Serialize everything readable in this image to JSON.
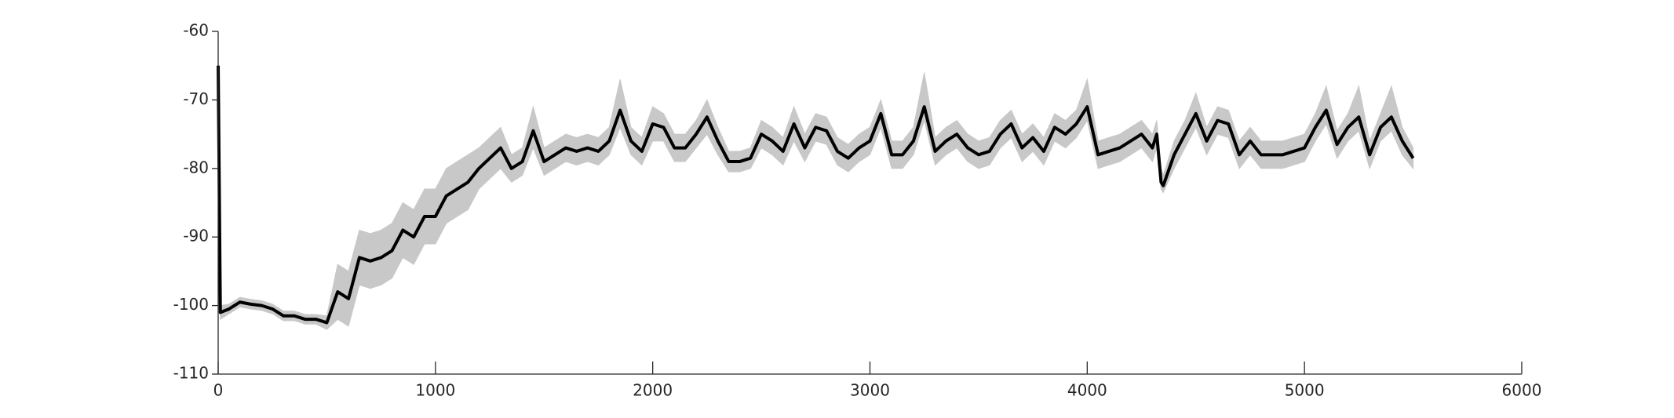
{
  "chart_data": {
    "type": "line",
    "x": [
      0,
      10,
      50,
      100,
      150,
      200,
      250,
      300,
      350,
      400,
      450,
      500,
      550,
      600,
      650,
      700,
      750,
      800,
      850,
      900,
      950,
      1000,
      1050,
      1100,
      1150,
      1200,
      1250,
      1300,
      1350,
      1400,
      1450,
      1500,
      1550,
      1600,
      1650,
      1700,
      1750,
      1800,
      1850,
      1900,
      1950,
      2000,
      2050,
      2100,
      2150,
      2200,
      2250,
      2300,
      2350,
      2400,
      2450,
      2500,
      2550,
      2600,
      2650,
      2700,
      2750,
      2800,
      2850,
      2900,
      2950,
      3000,
      3050,
      3100,
      3150,
      3200,
      3250,
      3300,
      3350,
      3400,
      3450,
      3500,
      3550,
      3600,
      3650,
      3700,
      3750,
      3800,
      3850,
      3900,
      3950,
      4000,
      4050,
      4100,
      4150,
      4200,
      4250,
      4300,
      4320,
      4340,
      4350,
      4400,
      4450,
      4500,
      4550,
      4600,
      4650,
      4700,
      4750,
      4800,
      4850,
      4900,
      4950,
      5000,
      5050,
      5100,
      5150,
      5200,
      5250,
      5300,
      5350,
      5400,
      5450,
      5500
    ],
    "series": [
      {
        "color": "#000000",
        "values": [
          -65,
          -101,
          -100.5,
          -99.5,
          -99.8,
          -100,
          -100.5,
          -101.5,
          -101.5,
          -102,
          -102,
          -102.5,
          -98,
          -99,
          -93,
          -93.5,
          -93,
          -92,
          -89,
          -90,
          -87,
          -87,
          -84,
          -83,
          -82,
          -80,
          -78.5,
          -77,
          -80,
          -79,
          -74.5,
          -79,
          -78,
          -77,
          -77.5,
          -77,
          -77.5,
          -76,
          -71.5,
          -76,
          -77.5,
          -73.5,
          -74,
          -77,
          -77,
          -75,
          -72.5,
          -76,
          -79,
          -79,
          -78.5,
          -75,
          -76,
          -77.5,
          -73.5,
          -77,
          -74,
          -74.5,
          -77.5,
          -78.5,
          -77,
          -76,
          -72,
          -78,
          -78,
          -76,
          -71,
          -77.5,
          -76,
          -75,
          -77,
          -78,
          -77.5,
          -75,
          -73.5,
          -77,
          -75.5,
          -77.5,
          -74,
          -75,
          -73.5,
          -71,
          -78,
          -77.5,
          -77,
          -76,
          -75,
          -77,
          -75,
          -82,
          -82.5,
          -78,
          -75,
          -72,
          -76,
          -73,
          -73.5,
          -78,
          -76,
          -78,
          -78,
          -78,
          -77.5,
          -77,
          -74,
          -71.5,
          -76.5,
          -74,
          -72.5,
          -78,
          -74,
          -72.5,
          -76,
          -78.5
        ]
      }
    ],
    "band": {
      "color": "#c8c8c8",
      "lower": [
        -66,
        -102,
        -101.2,
        -100.2,
        -100.5,
        -100.7,
        -101.2,
        -102.2,
        -102.2,
        -102.7,
        -102.7,
        -103.5,
        -102,
        -103,
        -97,
        -97.5,
        -97,
        -96,
        -93,
        -94,
        -91,
        -91,
        -88,
        -87,
        -86,
        -83,
        -81.5,
        -80,
        -82,
        -81,
        -77,
        -81,
        -80,
        -79,
        -79.5,
        -79,
        -79.5,
        -78,
        -74,
        -78,
        -79.5,
        -76,
        -76,
        -79,
        -79,
        -77,
        -75,
        -78,
        -80.5,
        -80.5,
        -80,
        -77,
        -78,
        -79.5,
        -76,
        -79,
        -76,
        -76.5,
        -79.5,
        -80.5,
        -79,
        -78,
        -74,
        -80,
        -80,
        -78,
        -73,
        -79.5,
        -78,
        -77,
        -79,
        -80,
        -79.5,
        -77,
        -75.5,
        -79,
        -77.5,
        -79.5,
        -76,
        -77,
        -75.5,
        -73,
        -80,
        -79.5,
        -79,
        -78,
        -77,
        -79,
        -77,
        -83,
        -83.5,
        -80,
        -77,
        -74,
        -78,
        -75,
        -75.5,
        -80,
        -78,
        -80,
        -80,
        -80,
        -79.5,
        -79,
        -76,
        -73.5,
        -78.5,
        -76,
        -74.5,
        -80,
        -76,
        -74.5,
        -78,
        -80
      ],
      "upper": [
        -64,
        -100,
        -99.8,
        -98.8,
        -99.1,
        -99.3,
        -99.8,
        -100.8,
        -100.8,
        -101.3,
        -101.3,
        -101.5,
        -94,
        -95,
        -89,
        -89.5,
        -89,
        -88,
        -85,
        -86,
        -83,
        -83,
        -80,
        -79,
        -78,
        -77,
        -75.5,
        -74,
        -78,
        -77,
        -71,
        -77,
        -76,
        -75,
        -75.5,
        -75,
        -75.5,
        -74,
        -67,
        -74,
        -75.5,
        -71,
        -72,
        -75,
        -75,
        -73,
        -70,
        -74,
        -77.5,
        -77.5,
        -77,
        -73,
        -74,
        -75.5,
        -71,
        -75,
        -72,
        -72.5,
        -75.5,
        -76.5,
        -75,
        -74,
        -70,
        -76,
        -76,
        -74,
        -66,
        -75.5,
        -74,
        -73,
        -75,
        -76,
        -75.5,
        -73,
        -71.5,
        -75,
        -73.5,
        -75.5,
        -72,
        -73,
        -71.5,
        -67,
        -76,
        -75.5,
        -75,
        -74,
        -73,
        -75,
        -73,
        -80,
        -81,
        -76,
        -73,
        -69,
        -74,
        -71,
        -71.5,
        -76,
        -74,
        -76,
        -76,
        -76,
        -75.5,
        -75,
        -72,
        -68,
        -74.5,
        -72,
        -68,
        -76,
        -72,
        -68,
        -74,
        -77
      ]
    },
    "xlim": [
      0,
      6000
    ],
    "xticks": [
      0,
      1000,
      2000,
      3000,
      4000,
      5000,
      6000
    ],
    "ylim": [
      -110,
      -60
    ],
    "yticks": [
      -110,
      -100,
      -90,
      -80,
      -70,
      -60
    ]
  }
}
